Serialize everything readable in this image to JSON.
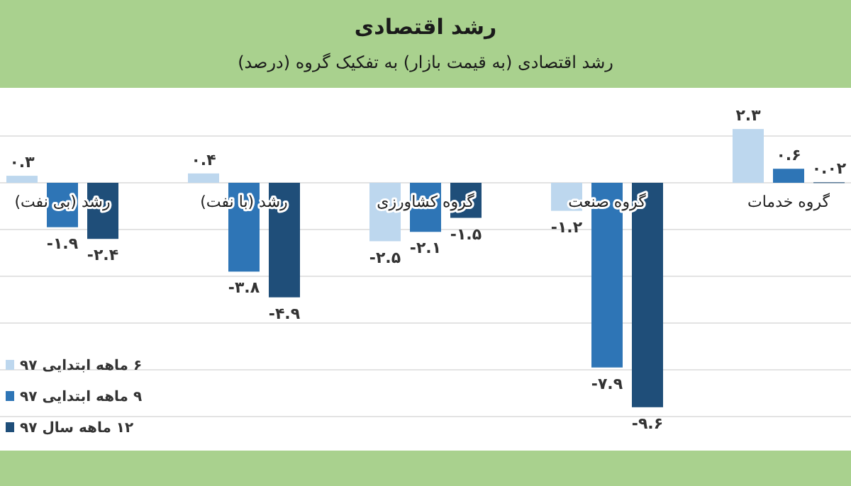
{
  "chart_data": {
    "type": "bar",
    "title": "رشد اقتصادی",
    "subtitle": "رشد اقتصادی (به قیمت بازار) به تفکیک گروه (درصد)",
    "categories": [
      "رشد (بی نفت)",
      "رشد (با نفت)",
      "گروه کشاورزی",
      "گروه صنعت",
      "گروه خدمات"
    ],
    "series": [
      {
        "name": "۶ ماهه ابتدایی ۹۷",
        "color": "#bdd7ee",
        "values": [
          0.3,
          0.4,
          -2.5,
          -1.2,
          2.3
        ],
        "value_labels": [
          "۰.۳",
          "۰.۴",
          "-۲.۵",
          "-۱.۲",
          "۲.۳"
        ]
      },
      {
        "name": "۹ ماهه ابتدایی ۹۷",
        "color": "#2e75b6",
        "values": [
          -1.9,
          -3.8,
          -2.1,
          -7.9,
          0.6
        ],
        "value_labels": [
          "-۱.۹",
          "-۳.۸",
          "-۲.۱",
          "-۷.۹",
          "۰.۶"
        ]
      },
      {
        "name": "۱۲ ماهه سال ۹۷",
        "color": "#1f4e79",
        "values": [
          -2.4,
          -4.9,
          -1.5,
          -9.6,
          0.02
        ],
        "value_labels": [
          "-۲.۴",
          "-۴.۹",
          "-۱.۵",
          "-۹.۶",
          "۰.۰۲"
        ]
      }
    ],
    "yticks": [
      {
        "value": -10,
        "label": null
      },
      {
        "value": -8,
        "label": null
      },
      {
        "value": -6,
        "label": null
      },
      {
        "value": -4,
        "label": null
      },
      {
        "value": -2,
        "label": null
      },
      {
        "value": 0,
        "label": null
      },
      {
        "value": 2,
        "label": null
      }
    ],
    "grid": "y",
    "legend": "bottom left"
  }
}
